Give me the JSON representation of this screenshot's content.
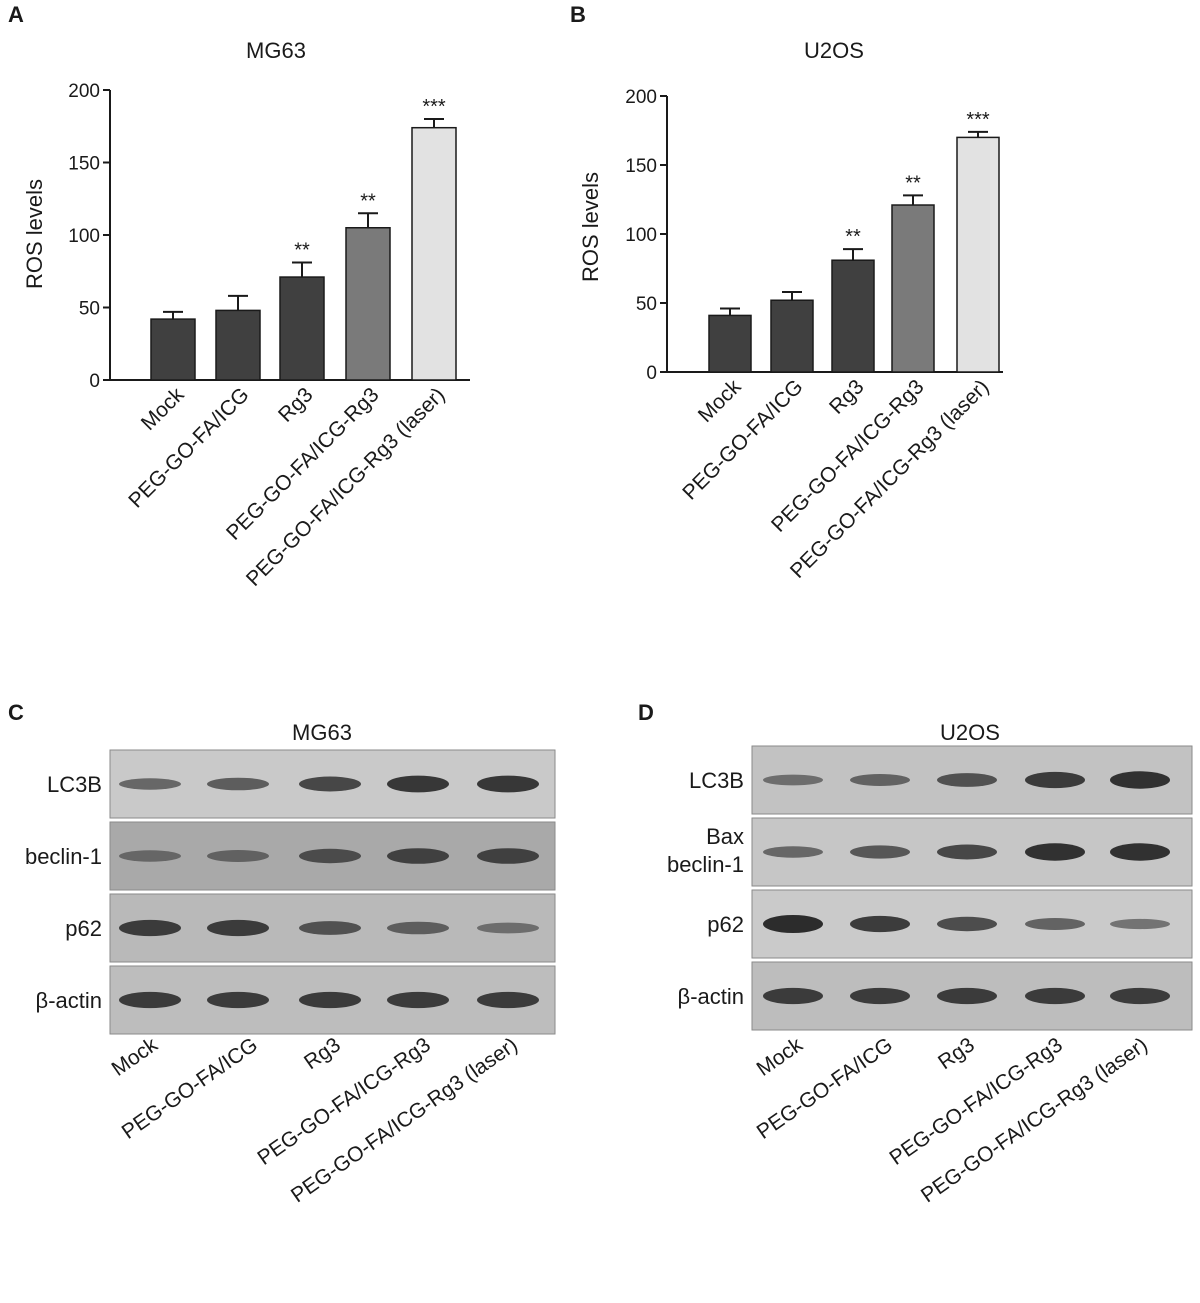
{
  "colors": {
    "dark": "#404040",
    "mid": "#7a7a7a",
    "light": "#e2e2e2",
    "axis": "#1a1a1a"
  },
  "chart_data": [
    {
      "panel": "A",
      "type": "bar",
      "title": "MG63",
      "ylabel": "ROS levels",
      "xlabel": "",
      "ylim": [
        0,
        200
      ],
      "yticks": [
        "0",
        "50",
        "100",
        "150",
        "200"
      ],
      "grid": false,
      "categories": [
        "Mock",
        "PEG-GO-FA/ICG",
        "Rg3",
        "PEG-GO-FA/ICG-Rg3",
        "PEG-GO-FA/ICG-Rg3 (laser)"
      ],
      "values": [
        42,
        48,
        71,
        105,
        174
      ],
      "errors": [
        5,
        10,
        10,
        10,
        6
      ],
      "significance": [
        "",
        "",
        "**",
        "**",
        "***"
      ],
      "bar_colors": [
        "#404040",
        "#404040",
        "#404040",
        "#7a7a7a",
        "#e2e2e2"
      ]
    },
    {
      "panel": "B",
      "type": "bar",
      "title": "U2OS",
      "ylabel": "ROS levels",
      "xlabel": "",
      "ylim": [
        0,
        200
      ],
      "yticks": [
        "0",
        "50",
        "100",
        "150",
        "200"
      ],
      "grid": false,
      "categories": [
        "Mock",
        "PEG-GO-FA/ICG",
        "Rg3",
        "PEG-GO-FA/ICG-Rg3",
        "PEG-GO-FA/ICG-Rg3 (laser)"
      ],
      "values": [
        41,
        52,
        81,
        121,
        170
      ],
      "errors": [
        5,
        6,
        8,
        7,
        4
      ],
      "significance": [
        "",
        "",
        "**",
        "**",
        "***"
      ],
      "bar_colors": [
        "#404040",
        "#404040",
        "#404040",
        "#7a7a7a",
        "#e2e2e2"
      ]
    }
  ],
  "blots": [
    {
      "panel": "C",
      "title": "MG63",
      "lanes": [
        "Mock",
        "PEG-GO-FA/ICG",
        "Rg3",
        "PEG-GO-FA/ICG-Rg3",
        "PEG-GO-FA/ICG-Rg3 (laser)"
      ],
      "rows": [
        {
          "label": "LC3B",
          "intensity": [
            0.45,
            0.55,
            0.75,
            0.9,
            0.9
          ]
        },
        {
          "label": "beclin-1",
          "intensity": [
            0.45,
            0.5,
            0.7,
            0.8,
            0.8
          ]
        },
        {
          "label": "p62",
          "intensity": [
            0.85,
            0.85,
            0.65,
            0.55,
            0.4
          ]
        },
        {
          "label": "β-actin",
          "intensity": [
            0.85,
            0.85,
            0.85,
            0.85,
            0.85
          ]
        }
      ]
    },
    {
      "panel": "D",
      "title": "U2OS",
      "lanes": [
        "Mock",
        "PEG-GO-FA/ICG",
        "Rg3",
        "PEG-GO-FA/ICG-Rg3",
        "PEG-GO-FA/ICG-Rg3 (laser)"
      ],
      "rows": [
        {
          "label": "LC3B",
          "intensity": [
            0.4,
            0.5,
            0.65,
            0.85,
            0.95
          ]
        },
        {
          "label": "Bax",
          "label2": "beclin-1",
          "intensity": [
            0.45,
            0.6,
            0.75,
            0.95,
            0.95
          ]
        },
        {
          "label": "p62",
          "intensity": [
            1.0,
            0.85,
            0.7,
            0.5,
            0.35
          ]
        },
        {
          "label": "β-actin",
          "intensity": [
            0.85,
            0.85,
            0.85,
            0.85,
            0.85
          ]
        }
      ]
    }
  ]
}
